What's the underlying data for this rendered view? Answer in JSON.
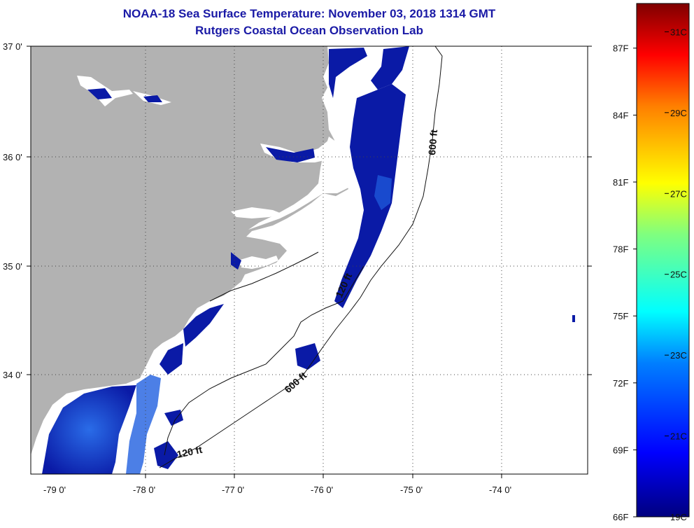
{
  "title": {
    "line1": "NOAA-18 Sea Surface Temperature:  November 03, 2018 1314 GMT",
    "line2": "Rutgers Coastal Ocean Observation Lab"
  },
  "map": {
    "lat_labels": [
      "37 0'",
      "36 0'",
      "35 0'",
      "34 0'"
    ],
    "lon_labels": [
      "-79 0'",
      "-78 0'",
      "-77 0'",
      "-76 0'",
      "-75 0'",
      "-74 0'"
    ],
    "contour_labels": [
      "600 ft",
      "120 ft",
      "600 ft",
      "120 ft"
    ],
    "colors": {
      "land": "#b2b2b2",
      "ocean": "#ffffff",
      "sst_cold": "#0a1aa6",
      "sst_mid": "#1f5fe0",
      "gridline": "#333333"
    }
  },
  "colorbar": {
    "fahrenheit": [
      "87F",
      "84F",
      "81F",
      "78F",
      "75F",
      "72F",
      "69F",
      "66F"
    ],
    "celsius": [
      "31C",
      "29C",
      "27C",
      "25C",
      "23C",
      "21C",
      "19C"
    ],
    "range_f": [
      66,
      89
    ],
    "range_c": [
      19,
      31.7
    ],
    "colors": [
      "#00007f",
      "#0000ff",
      "#007fff",
      "#00ffff",
      "#7fff7f",
      "#ffff00",
      "#ff7f00",
      "#ff0000",
      "#7f0000"
    ]
  }
}
